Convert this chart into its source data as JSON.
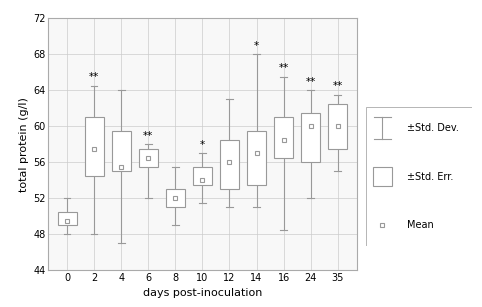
{
  "days": [
    0,
    2,
    4,
    6,
    8,
    10,
    12,
    14,
    16,
    24,
    35
  ],
  "means": [
    49.5,
    57.5,
    55.5,
    56.5,
    52.0,
    54.0,
    56.0,
    57.0,
    58.5,
    60.0,
    60.0
  ],
  "std_err_low": [
    49.0,
    54.5,
    55.0,
    55.5,
    51.0,
    53.5,
    53.0,
    53.5,
    56.5,
    56.0,
    57.5
  ],
  "std_err_high": [
    50.5,
    61.0,
    59.5,
    57.5,
    53.0,
    55.5,
    58.5,
    59.5,
    61.0,
    61.5,
    62.5
  ],
  "std_dev_low": [
    48.0,
    48.0,
    47.0,
    52.0,
    49.0,
    51.5,
    51.0,
    51.0,
    48.5,
    52.0,
    55.0
  ],
  "std_dev_high": [
    52.0,
    64.5,
    64.0,
    58.0,
    55.5,
    57.0,
    63.0,
    68.0,
    65.5,
    64.0,
    63.5
  ],
  "annotations": [
    "",
    "**",
    "",
    "**",
    "",
    "*",
    "",
    "*",
    "**",
    "**",
    "**"
  ],
  "ylabel": "total protein (g/l)",
  "xlabel": "days post-inoculation",
  "ylim": [
    44,
    72
  ],
  "yticks": [
    44,
    48,
    52,
    56,
    60,
    64,
    68,
    72
  ],
  "box_color": "#ffffff",
  "box_edge_color": "#999999",
  "whisker_color": "#999999",
  "grid_color": "#cccccc",
  "plot_bg_color": "#f8f8f8",
  "fig_bg_color": "#ffffff",
  "legend_labels": [
    "±Std. Dev.",
    "±Std. Err.",
    "Mean"
  ],
  "box_width": 0.7,
  "annotation_fontsize": 7.5,
  "axis_fontsize": 7,
  "label_fontsize": 8,
  "legend_fontsize": 7
}
